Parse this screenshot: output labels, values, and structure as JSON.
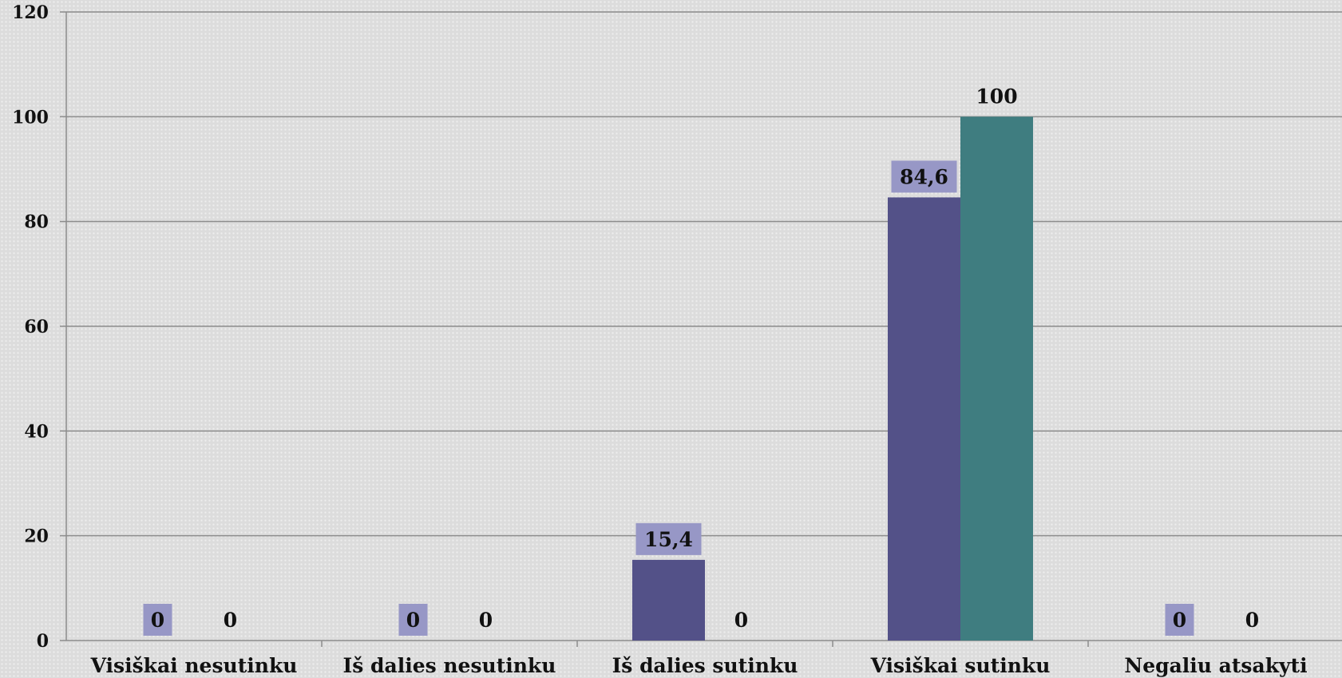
{
  "chart_data": {
    "type": "bar",
    "title": "",
    "categories": [
      "Visiškai nesutinku",
      "Iš dalies nesutinku",
      "Iš dalies sutinku",
      "Visiškai sutinku",
      "Negaliu atsakyti"
    ],
    "series": [
      {
        "values": [
          0,
          0,
          15.4,
          84.6,
          0
        ],
        "labels": [
          "0",
          "0",
          "15,4",
          "84,6",
          "0"
        ],
        "color": "#535188",
        "label_bg": "#9797c6"
      },
      {
        "values": [
          0,
          0,
          0,
          100,
          0
        ],
        "labels": [
          "0",
          "0",
          "0",
          "100",
          "0"
        ],
        "color": "#3f7d80",
        "label_bg": ""
      }
    ],
    "yticks": [
      "0",
      "20",
      "40",
      "60",
      "80",
      "100",
      "120"
    ],
    "ylim": [
      0,
      120
    ],
    "xlabel": "",
    "ylabel": "",
    "grid": true,
    "legend": "none"
  }
}
